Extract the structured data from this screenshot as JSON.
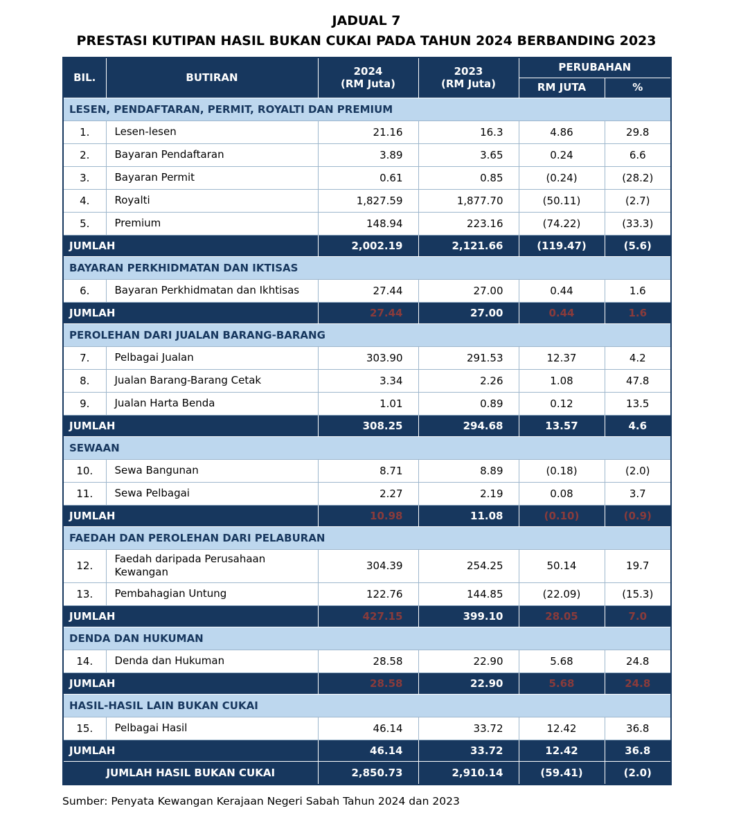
{
  "page": {
    "title_line1": "JADUAL 7",
    "title_line2": "PRESTASI KUTIPAN HASIL BUKAN CUKAI PADA TAHUN 2024 BERBANDING 2023",
    "source_note": "Sumber: Penyata Kewangan Kerajaan Negeri Sabah Tahun 2024 dan 2023"
  },
  "colors": {
    "navy": "#17375E",
    "section_blue": "#BDD7EE",
    "muted_red": "#8A3B3B",
    "grid": "#9DB6CC"
  },
  "table": {
    "headers": {
      "bil": "BIL.",
      "butiran": "BUTIRAN",
      "y2024_line1": "2024",
      "y2024_line2": "(RM Juta)",
      "y2023_line1": "2023",
      "y2023_line2": "(RM Juta)",
      "perubahan": "PERUBAHAN",
      "rm_juta": "RM JUTA",
      "percent": "%"
    },
    "sections": [
      {
        "title": "LESEN, PENDAFTARAN, PERMIT, ROYALTI DAN PREMIUM",
        "rows": [
          {
            "bil": "1.",
            "butiran": "Lesen-lesen",
            "y2024": "21.16",
            "y2023": "16.3",
            "rm": "4.86",
            "pct": "29.8"
          },
          {
            "bil": "2.",
            "butiran": "Bayaran Pendaftaran",
            "y2024": "3.89",
            "y2023": "3.65",
            "rm": "0.24",
            "pct": "6.6"
          },
          {
            "bil": "3.",
            "butiran": "Bayaran Permit",
            "y2024": "0.61",
            "y2023": "0.85",
            "rm": "(0.24)",
            "pct": "(28.2)"
          },
          {
            "bil": "4.",
            "butiran": "Royalti",
            "y2024": "1,827.59",
            "y2023": "1,877.70",
            "rm": "(50.11)",
            "pct": "(2.7)"
          },
          {
            "bil": "5.",
            "butiran": "Premium",
            "y2024": "148.94",
            "y2023": "223.16",
            "rm": "(74.22)",
            "pct": "(33.3)"
          }
        ],
        "jumlah": {
          "label": "JUMLAH",
          "y2024": "2,002.19",
          "y2023": "2,121.66",
          "rm": "(119.47)",
          "pct": "(5.6)",
          "muted": []
        }
      },
      {
        "title": "BAYARAN PERKHIDMATAN DAN IKTISAS",
        "rows": [
          {
            "bil": "6.",
            "butiran": "Bayaran Perkhidmatan dan Ikhtisas",
            "y2024": "27.44",
            "y2023": "27.00",
            "rm": "0.44",
            "pct": "1.6"
          }
        ],
        "jumlah": {
          "label": "JUMLAH",
          "y2024": "27.44",
          "y2023": "27.00",
          "rm": "0.44",
          "pct": "1.6",
          "muted": [
            "y2024",
            "rm",
            "pct"
          ]
        }
      },
      {
        "title": "PEROLEHAN DARI JUALAN BARANG-BARANG",
        "rows": [
          {
            "bil": "7.",
            "butiran": "Pelbagai Jualan",
            "y2024": "303.90",
            "y2023": "291.53",
            "rm": "12.37",
            "pct": "4.2"
          },
          {
            "bil": "8.",
            "butiran": "Jualan Barang-Barang Cetak",
            "y2024": "3.34",
            "y2023": "2.26",
            "rm": "1.08",
            "pct": "47.8"
          },
          {
            "bil": "9.",
            "butiran": "Jualan Harta Benda",
            "y2024": "1.01",
            "y2023": "0.89",
            "rm": "0.12",
            "pct": "13.5"
          }
        ],
        "jumlah": {
          "label": "JUMLAH",
          "y2024": "308.25",
          "y2023": "294.68",
          "rm": "13.57",
          "pct": "4.6",
          "muted": []
        }
      },
      {
        "title": "SEWAAN",
        "rows": [
          {
            "bil": "10.",
            "butiran": "Sewa Bangunan",
            "y2024": "8.71",
            "y2023": "8.89",
            "rm": "(0.18)",
            "pct": "(2.0)"
          },
          {
            "bil": "11.",
            "butiran": "Sewa Pelbagai",
            "y2024": "2.27",
            "y2023": "2.19",
            "rm": "0.08",
            "pct": "3.7"
          }
        ],
        "jumlah": {
          "label": "JUMLAH",
          "y2024": "10.98",
          "y2023": "11.08",
          "rm": "(0.10)",
          "pct": "(0.9)",
          "muted": [
            "y2024",
            "rm",
            "pct"
          ]
        }
      },
      {
        "title": "FAEDAH DAN PEROLEHAN DARI PELABURAN",
        "rows": [
          {
            "bil": "12.",
            "butiran": "Faedah daripada Perusahaan Kewangan",
            "y2024": "304.39",
            "y2023": "254.25",
            "rm": "50.14",
            "pct": "19.7"
          },
          {
            "bil": "13.",
            "butiran": "Pembahagian Untung",
            "y2024": "122.76",
            "y2023": "144.85",
            "rm": "(22.09)",
            "pct": "(15.3)"
          }
        ],
        "jumlah": {
          "label": "JUMLAH",
          "y2024": "427.15",
          "y2023": "399.10",
          "rm": "28.05",
          "pct": "7.0",
          "muted": [
            "y2024",
            "rm",
            "pct"
          ]
        }
      },
      {
        "title": "DENDA DAN HUKUMAN",
        "rows": [
          {
            "bil": "14.",
            "butiran": "Denda dan Hukuman",
            "y2024": "28.58",
            "y2023": "22.90",
            "rm": "5.68",
            "pct": "24.8"
          }
        ],
        "jumlah": {
          "label": "JUMLAH",
          "y2024": "28.58",
          "y2023": "22.90",
          "rm": "5.68",
          "pct": "24.8",
          "muted": [
            "y2024",
            "rm",
            "pct"
          ]
        }
      },
      {
        "title": "HASIL-HASIL LAIN BUKAN CUKAI",
        "rows": [
          {
            "bil": "15.",
            "butiran": "Pelbagai Hasil",
            "y2024": "46.14",
            "y2023": "33.72",
            "rm": "12.42",
            "pct": "36.8"
          }
        ],
        "jumlah": {
          "label": "JUMLAH",
          "y2024": "46.14",
          "y2023": "33.72",
          "rm": "12.42",
          "pct": "36.8",
          "muted": []
        }
      }
    ],
    "grand_total": {
      "label": "JUMLAH HASIL BUKAN CUKAI",
      "y2024": "2,850.73",
      "y2023": "2,910.14",
      "rm": "(59.41)",
      "pct": "(2.0)"
    }
  }
}
